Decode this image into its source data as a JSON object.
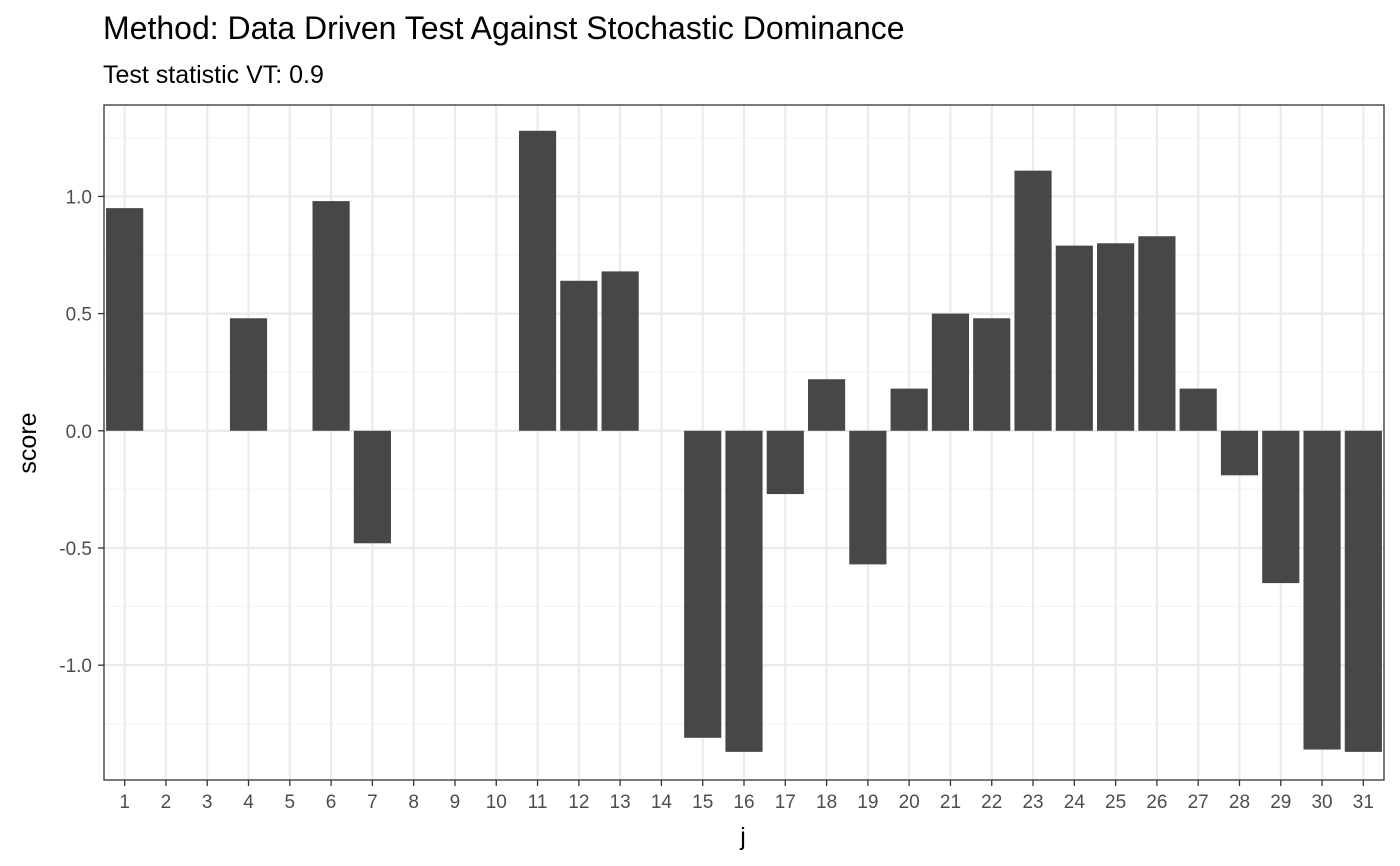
{
  "chart_data": {
    "type": "bar",
    "title": "Method: Data Driven Test Against Stochastic Dominance",
    "subtitle": "Test statistic VT: 0.9",
    "xlabel": "j",
    "ylabel": "score",
    "categories": [
      "1",
      "2",
      "3",
      "4",
      "5",
      "6",
      "7",
      "8",
      "9",
      "10",
      "11",
      "12",
      "13",
      "14",
      "15",
      "16",
      "17",
      "18",
      "19",
      "20",
      "21",
      "22",
      "23",
      "24",
      "25",
      "26",
      "27",
      "28",
      "29",
      "30",
      "31"
    ],
    "values": [
      0.95,
      0,
      0,
      0.48,
      0,
      0.98,
      -0.48,
      0,
      0,
      0,
      1.28,
      0.64,
      0.68,
      0,
      -1.31,
      -1.37,
      -0.27,
      0.22,
      -0.57,
      0.18,
      0.5,
      0.48,
      1.11,
      0.79,
      0.8,
      0.83,
      0.18,
      -0.19,
      -0.65,
      -1.36,
      -1.37
    ],
    "ylim": [
      -1.49,
      1.39
    ],
    "yticks": [
      -1.0,
      -0.5,
      0.0,
      0.5,
      1.0
    ],
    "ytick_labels": [
      "-1.0",
      "-0.5",
      "0.0",
      "0.5",
      "1.0"
    ],
    "grid": true,
    "colors": {
      "bar": "#474747",
      "grid_major": "#ebebeb",
      "grid_minor": "#f4f4f4",
      "panel_border": "#333333"
    }
  }
}
